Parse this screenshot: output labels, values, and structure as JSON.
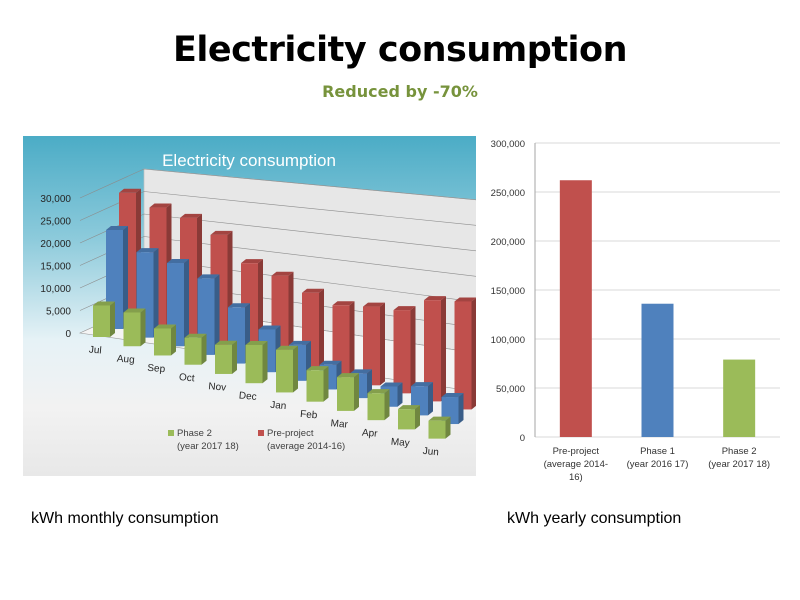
{
  "page": {
    "title": "Electricity consumption",
    "subtitle": "Reduced by -70%",
    "captions": {
      "monthly": "kWh monthly consumption",
      "yearly": "kWh yearly consumption"
    }
  },
  "colors": {
    "pre_project": "#c0504d",
    "phase1": "#4f81bd",
    "phase2": "#9bbb59",
    "subtitle": "#77933c"
  },
  "chart_data": [
    {
      "type": "bar",
      "style": "3d-clustered-depth",
      "title": "Electricity consumption",
      "xlabel": "",
      "ylabel": "",
      "ylim": [
        0,
        30000
      ],
      "yticks": [
        "0",
        "5,000",
        "10,000",
        "15,000",
        "20,000",
        "25,000",
        "30,000"
      ],
      "ytick_values": [
        0,
        5000,
        10000,
        15000,
        20000,
        25000,
        30000
      ],
      "grid": true,
      "categories": [
        "Jul",
        "Aug",
        "Sep",
        "Oct",
        "Nov",
        "Dec",
        "Jan",
        "Feb",
        "Mar",
        "Apr",
        "May",
        "Jun"
      ],
      "series": [
        {
          "name": "Phase 2 (year 2017 18)",
          "key": "phase2",
          "in_legend": true,
          "legend_line1": "Phase 2",
          "legend_line2": "(year 2017 18)",
          "values": [
            7000,
            7500,
            6000,
            6000,
            6500,
            8500,
            9500,
            7000,
            7500,
            6000,
            4500,
            4000
          ]
        },
        {
          "name": "Phase 1 (year 2016 17)",
          "key": "phase1",
          "in_legend": false,
          "values": [
            22000,
            19000,
            18500,
            17000,
            12500,
            9500,
            8000,
            5500,
            5500,
            4500,
            6500,
            6000
          ]
        },
        {
          "name": "Pre-project (average 2014-16)",
          "key": "pre_project",
          "in_legend": true,
          "legend_line1": "Pre-project",
          "legend_line2": "(average 2014-16)",
          "values": [
            28500,
            27000,
            26500,
            24500,
            20000,
            19000,
            17000,
            16000,
            17500,
            18500,
            22500,
            24000
          ]
        }
      ],
      "legend": "bottom"
    },
    {
      "type": "bar",
      "title": "",
      "xlabel": "",
      "ylabel": "",
      "ylim": [
        0,
        300000
      ],
      "yticks": [
        "0",
        "50,000",
        "100,000",
        "150,000",
        "200,000",
        "250,000",
        "300,000"
      ],
      "ytick_values": [
        0,
        50000,
        100000,
        150000,
        200000,
        250000,
        300000
      ],
      "grid": true,
      "categories": [
        {
          "line1": "Pre-project",
          "line2": "(average 2014-",
          "line3": "16)",
          "key": "pre_project"
        },
        {
          "line1": "Phase 1",
          "line2": "(year 2016 17)",
          "line3": "",
          "key": "phase1"
        },
        {
          "line1": "Phase 2",
          "line2": "(year 2017 18)",
          "line3": "",
          "key": "phase2"
        }
      ],
      "values": [
        262000,
        136000,
        79000
      ],
      "legend": "none"
    }
  ]
}
